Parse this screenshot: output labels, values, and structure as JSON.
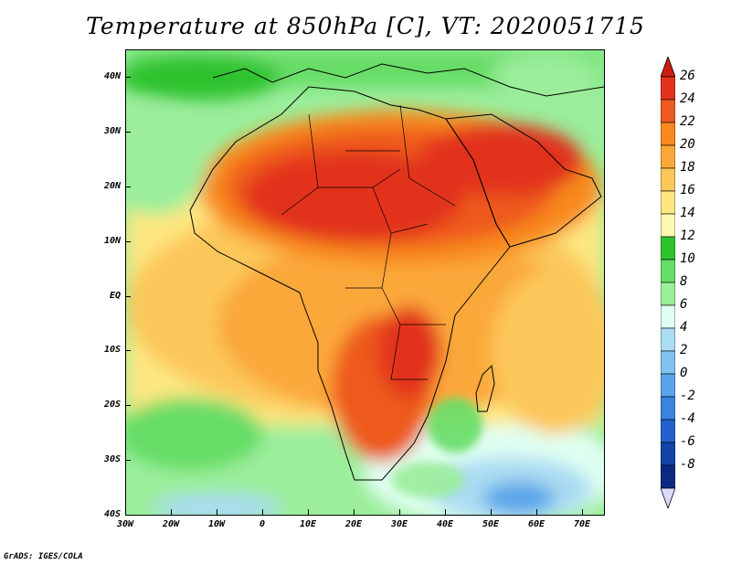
{
  "title": "Temperature at 850hPa [C], VT: 2020051715",
  "credit": "GrADS: IGES/COLA",
  "map": {
    "lat_labels": [
      "40N",
      "30N",
      "20N",
      "10N",
      "EQ",
      "10S",
      "20S",
      "30S",
      "40S"
    ],
    "lon_labels": [
      "30W",
      "20W",
      "10W",
      "0",
      "10E",
      "20E",
      "30E",
      "40E",
      "50E",
      "60E",
      "70E"
    ]
  },
  "colorbar": {
    "labels": [
      "26",
      "24",
      "22",
      "20",
      "18",
      "16",
      "14",
      "12",
      "10",
      "8",
      "6",
      "4",
      "2",
      "0",
      "-2",
      "-4",
      "-6",
      "-8"
    ],
    "colors": [
      "#e2311d",
      "#ee5a1f",
      "#f8891f",
      "#fba83a",
      "#fcc75a",
      "#fde680",
      "#fff8b0",
      "#2ec22e",
      "#66dd66",
      "#9bee9b",
      "#e0fff2",
      "#aadcf2",
      "#82c2ef",
      "#5aa4ea",
      "#3a84e0",
      "#2461cb",
      "#1443aa",
      "#0a2a80"
    ],
    "top_triangle_color": "#cc1c0e",
    "bottom_triangle_color": "#dcdcff"
  }
}
